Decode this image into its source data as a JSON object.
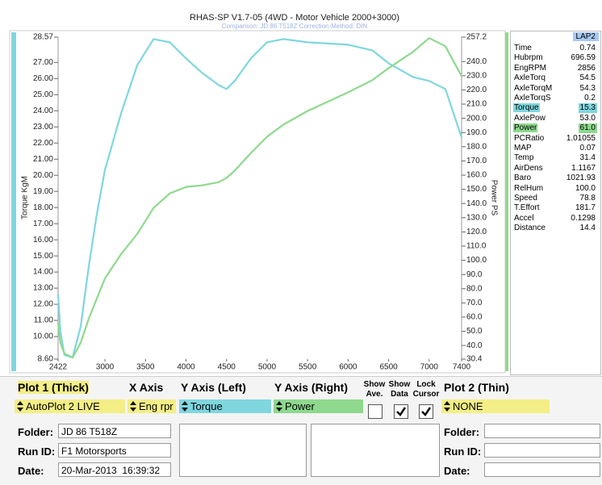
{
  "chart_data": {
    "type": "line",
    "title": "RHAS-SP V1.7-05   (4WD - Motor Vehicle 2000+3000)",
    "subtitle": "Comparison: JD 86 T518Z     Correction-Method: DIN",
    "ylabel": "Torque KgM",
    "y2label": "Power PS",
    "x": [
      2422,
      2450,
      2500,
      2600,
      2700,
      2800,
      2900,
      3000,
      3200,
      3400,
      3600,
      3800,
      4000,
      4200,
      4400,
      4500,
      4600,
      4800,
      5000,
      5200,
      5500,
      6000,
      6300,
      6500,
      6800,
      7000,
      7200,
      7400
    ],
    "xlim": [
      2422,
      7400
    ],
    "xticks": [
      2422,
      3000,
      3500,
      4000,
      4500,
      5000,
      5500,
      6000,
      6500,
      7000,
      7400
    ],
    "ylim": [
      8.6,
      28.57
    ],
    "yticks": [
      28.57,
      {
        "value": 27,
        "label": "27.00"
      },
      {
        "value": 26,
        "label": "26.00"
      },
      {
        "value": 25,
        "label": "25.00"
      },
      {
        "value": 24,
        "label": "24.00"
      },
      {
        "value": 23,
        "label": "23.00"
      },
      {
        "value": 22,
        "label": "22.00"
      },
      {
        "value": 21,
        "label": "21.00"
      },
      {
        "value": 20,
        "label": "20.00"
      },
      {
        "value": 19,
        "label": "19.00"
      },
      {
        "value": 18,
        "label": "18.00"
      },
      {
        "value": 17,
        "label": "17.00"
      },
      {
        "value": 16,
        "label": "16.00"
      },
      {
        "value": 15,
        "label": "15.00"
      },
      {
        "value": 14,
        "label": "14.00"
      },
      {
        "value": 13,
        "label": "13.00"
      },
      {
        "value": 12,
        "label": "12.00"
      },
      {
        "value": 11,
        "label": "11.00"
      },
      {
        "value": 10,
        "label": "10.00"
      },
      {
        "value": 8.6,
        "label": "8.60"
      }
    ],
    "y2lim": [
      30.4,
      257.2
    ],
    "y2ticks": [
      257.2,
      {
        "value": 240,
        "label": "240.0"
      },
      {
        "value": 230,
        "label": "230.0"
      },
      {
        "value": 220,
        "label": "220.0"
      },
      {
        "value": 210,
        "label": "210.0"
      },
      {
        "value": 200,
        "label": "200.0"
      },
      {
        "value": 190,
        "label": "190.0"
      },
      {
        "value": 180,
        "label": "180.0"
      },
      {
        "value": 170,
        "label": "170.0"
      },
      {
        "value": 160,
        "label": "160.0"
      },
      {
        "value": 150,
        "label": "150.0"
      },
      {
        "value": 140,
        "label": "140.0"
      },
      {
        "value": 130,
        "label": "130.0"
      },
      {
        "value": 120,
        "label": "120.0"
      },
      {
        "value": 110,
        "label": "110.0"
      },
      {
        "value": 100,
        "label": "100.0"
      },
      {
        "value": 90,
        "label": "90.0"
      },
      {
        "value": 80,
        "label": "80.0"
      },
      {
        "value": 70,
        "label": "70.0"
      },
      {
        "value": 60,
        "label": "60.0"
      },
      {
        "value": 50,
        "label": "50.0"
      },
      {
        "value": 40,
        "label": "40.0"
      },
      30.4
    ],
    "grid": false,
    "series": [
      {
        "name": "Torque",
        "color": "#7fd6df",
        "values": [
          12.6,
          10.35,
          8.85,
          8.7,
          10.6,
          14.35,
          17.6,
          20.35,
          23.85,
          26.85,
          28.45,
          28.25,
          27.25,
          26.35,
          25.6,
          25.35,
          25.85,
          27.25,
          28.25,
          28.45,
          28.25,
          28.1,
          27.75,
          26.95,
          26.1,
          25.85,
          25.35,
          22.35
        ]
      },
      {
        "name": "Power",
        "color": "#8ed98e",
        "axis": "y2",
        "values": [
          56.0,
          41.8,
          34.4,
          31.5,
          41.8,
          58.9,
          73.1,
          87.3,
          104.4,
          118.7,
          136.9,
          147.1,
          151.7,
          152.8,
          155.0,
          158.0,
          163.1,
          175.6,
          187.0,
          195.5,
          205.2,
          218.3,
          226.9,
          235.4,
          246.8,
          256.5,
          250.8,
          229.7
        ]
      }
    ]
  },
  "readout": {
    "header": "LAP2",
    "rows": [
      [
        "Time",
        "0.74"
      ],
      [
        "Hubrpm",
        "696.59"
      ],
      [
        "EngRPM",
        "2856"
      ],
      [
        "AxleTorq",
        "54.5"
      ],
      [
        "AxleTorqM",
        "54.3"
      ],
      [
        "AxleTorqS",
        "0.2"
      ],
      [
        "Torque",
        "15.3"
      ],
      [
        "AxlePow",
        "53.0"
      ],
      [
        "Power",
        "61.0"
      ],
      [
        "PCRatio",
        "1.01055"
      ],
      [
        "MAP",
        "0.07"
      ],
      [
        "Temp",
        "31.4"
      ],
      [
        "AirDens",
        "1.1167"
      ],
      [
        "Baro",
        "1021.93"
      ],
      [
        "RelHum",
        "100.0"
      ],
      [
        "Speed",
        "78.8"
      ],
      [
        "T.Effort",
        "181.7"
      ],
      [
        "Accel",
        "0.1298"
      ],
      [
        "Distance",
        "14.4"
      ]
    ]
  },
  "controls": {
    "plot1": {
      "label": "Plot 1 (Thick)",
      "value": "AutoPlot 2 LIVE"
    },
    "x_axis": {
      "label": "X Axis",
      "value": "Eng rpr"
    },
    "y_left": {
      "label": "Y Axis (Left)"
    },
    "y_right": {
      "label": "Y Axis (Right)"
    },
    "show_ave": {
      "label": "Show Ave.",
      "checked": false
    },
    "show_data": {
      "label": "Show Data",
      "checked": true
    },
    "lock_cursor": {
      "label": "Lock Cursor",
      "checked": true
    },
    "plot2": {
      "label": "Plot 2 (Thin)",
      "value": "NONE"
    }
  },
  "run_info": {
    "plot1": {
      "folder_label": "Folder:",
      "folder": "JD 86 T518Z",
      "run_id_label": "Run ID:",
      "run_id": "F1 Motorsports",
      "date_label": "Date:",
      "date": "20-Mar-2013  16:39:32"
    },
    "plot2": {
      "folder_label": "Folder:",
      "run_id_label": "Run ID:",
      "date_label": "Date:"
    }
  }
}
